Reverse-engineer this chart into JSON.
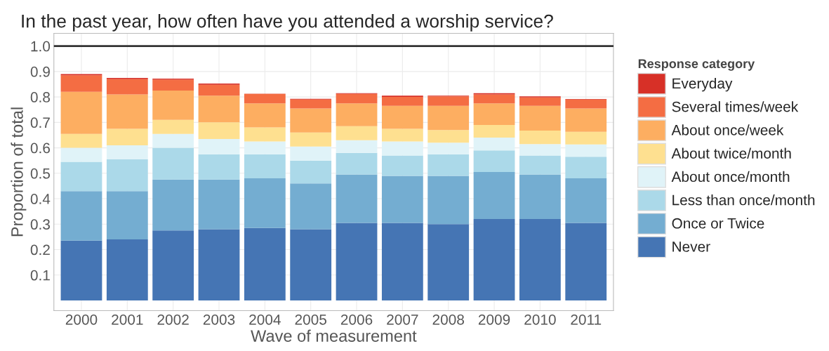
{
  "chart_data": {
    "type": "bar",
    "stacked": true,
    "title": "In the past year, how often have you attended a worship service?",
    "xlabel": "Wave of measurement",
    "ylabel": "Proportion of total",
    "legend_title": "Response category",
    "legend": "right",
    "grid": true,
    "categories": [
      "2000",
      "2001",
      "2002",
      "2003",
      "2004",
      "2005",
      "2006",
      "2007",
      "2008",
      "2009",
      "2010",
      "2011"
    ],
    "ylim": [
      -0.04,
      1.05
    ],
    "yticks": [
      0.1,
      0.2,
      0.3,
      0.4,
      0.5,
      0.6,
      0.7,
      0.8,
      0.9,
      {
        "value": 1,
        "label": "1.0"
      }
    ],
    "ref_lines": [
      {
        "axis": "y",
        "value": 1.0,
        "color": "#333333"
      }
    ],
    "series": [
      {
        "name": "Never",
        "color": "#4575b4",
        "values": [
          0.235,
          0.24,
          0.275,
          0.28,
          0.285,
          0.28,
          0.305,
          0.305,
          0.3,
          0.32,
          0.32,
          0.305
        ]
      },
      {
        "name": "Once or Twice",
        "color": "#74add1",
        "values": [
          0.195,
          0.19,
          0.2,
          0.195,
          0.195,
          0.18,
          0.19,
          0.185,
          0.19,
          0.185,
          0.175,
          0.175
        ]
      },
      {
        "name": "Less than once/month",
        "color": "#abd9e9",
        "values": [
          0.115,
          0.125,
          0.125,
          0.1,
          0.095,
          0.09,
          0.085,
          0.08,
          0.085,
          0.085,
          0.075,
          0.085
        ]
      },
      {
        "name": "About once/month",
        "color": "#e0f3f8",
        "values": [
          0.055,
          0.055,
          0.055,
          0.06,
          0.05,
          0.055,
          0.05,
          0.055,
          0.045,
          0.05,
          0.045,
          0.048
        ]
      },
      {
        "name": "About twice/month",
        "color": "#fee090",
        "values": [
          0.055,
          0.065,
          0.055,
          0.065,
          0.055,
          0.055,
          0.055,
          0.05,
          0.05,
          0.05,
          0.053,
          0.05
        ]
      },
      {
        "name": "About once/week",
        "color": "#fdae61",
        "values": [
          0.165,
          0.135,
          0.115,
          0.105,
          0.095,
          0.095,
          0.09,
          0.09,
          0.095,
          0.085,
          0.097,
          0.092
        ]
      },
      {
        "name": "Several times/week",
        "color": "#f46d43",
        "values": [
          0.065,
          0.06,
          0.043,
          0.043,
          0.037,
          0.035,
          0.037,
          0.035,
          0.037,
          0.035,
          0.033,
          0.035
        ]
      },
      {
        "name": "Everyday",
        "color": "#d73027",
        "values": [
          0.005,
          0.005,
          0.004,
          0.005,
          0.001,
          0.003,
          0.003,
          0.005,
          0.003,
          0.005,
          0.004,
          0.002
        ]
      }
    ]
  }
}
